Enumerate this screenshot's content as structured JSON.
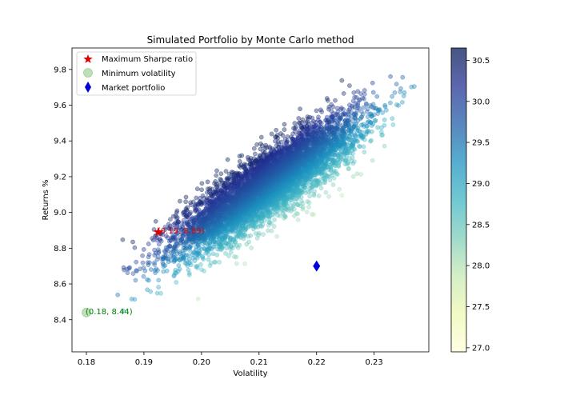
{
  "chart_data": {
    "type": "scatter",
    "title": "Simulated Portfolio by Monte Carlo method",
    "xlabel": "Volatility",
    "ylabel": "Returns %",
    "xlim": [
      0.1775,
      0.2395
    ],
    "ylim": [
      8.22,
      9.92
    ],
    "x_ticks": [
      0.18,
      0.19,
      0.2,
      0.21,
      0.22,
      0.23
    ],
    "x_tick_labels": [
      "0.18",
      "0.19",
      "0.20",
      "0.21",
      "0.22",
      "0.23"
    ],
    "y_ticks": [
      8.4,
      8.6,
      8.8,
      9.0,
      9.2,
      9.4,
      9.6,
      9.8
    ],
    "y_tick_labels": [
      "8.4",
      "8.6",
      "8.8",
      "9.0",
      "9.2",
      "9.4",
      "9.6",
      "9.8"
    ],
    "grid": false,
    "colormap": "YlGnBu",
    "colorbar": {
      "range": [
        26.95,
        30.65
      ],
      "ticks": [
        27.0,
        27.5,
        28.0,
        28.5,
        29.0,
        29.5,
        30.0,
        30.5
      ],
      "tick_labels": [
        "27.0",
        "27.5",
        "28.0",
        "28.5",
        "29.0",
        "29.5",
        "30.0",
        "30.5"
      ]
    },
    "simulated_cloud": {
      "description_points": 6000,
      "x_range": [
        0.184,
        0.237
      ],
      "y_range": [
        8.28,
        9.84
      ]
    },
    "highlights": [
      {
        "name": "Maximum Sharpe ratio",
        "x": 0.1925,
        "y": 8.89,
        "marker": "star",
        "color": "#e00000",
        "annotation": "(0.19, 8.89)"
      },
      {
        "name": "Minimum volatility",
        "x": 0.18,
        "y": 8.44,
        "marker": "circle",
        "color": "#a8d5a2",
        "annotation": "(0.18, 8.44)",
        "annotation_color": "#008000"
      },
      {
        "name": "Market portfolio",
        "x": 0.22,
        "y": 8.7,
        "marker": "diamond",
        "color": "#0000dd"
      }
    ],
    "legend": {
      "position": "top-left",
      "entries": [
        "Maximum Sharpe ratio",
        "Minimum volatility",
        "Market portfolio"
      ]
    }
  }
}
